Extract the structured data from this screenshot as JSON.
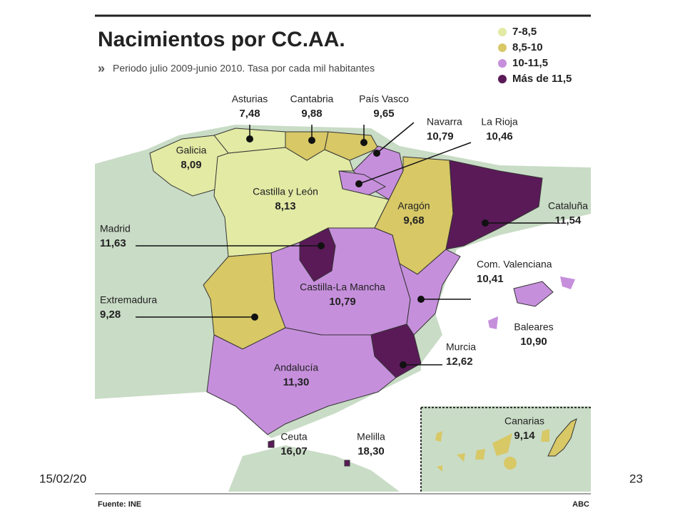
{
  "header": {
    "title": "Nacimientos por CC.AA.",
    "subtitle": "Periodo julio 2009-junio 2010. Tasa por cada mil habitantes"
  },
  "legend": [
    {
      "label": "7-8,5",
      "color": "#e2eaa4"
    },
    {
      "label": "8,5-10",
      "color": "#d8c866"
    },
    {
      "label": "10-11,5",
      "color": "#c68fdc"
    },
    {
      "label": "Más de 11,5",
      "color": "#5a1a58"
    }
  ],
  "regions": [
    {
      "name": "Asturias",
      "value": "7,48",
      "class": 0
    },
    {
      "name": "Cantabria",
      "value": "9,88",
      "class": 1
    },
    {
      "name": "País Vasco",
      "value": "9,65",
      "class": 1
    },
    {
      "name": "Navarra",
      "value": "10,79",
      "class": 2
    },
    {
      "name": "La Rioja",
      "value": "10,46",
      "class": 2
    },
    {
      "name": "Galicia",
      "value": "8,09",
      "class": 0
    },
    {
      "name": "Castilla y León",
      "value": "8,13",
      "class": 0
    },
    {
      "name": "Aragón",
      "value": "9,68",
      "class": 1
    },
    {
      "name": "Cataluña",
      "value": "11,54",
      "class": 3
    },
    {
      "name": "Madrid",
      "value": "11,63",
      "class": 3
    },
    {
      "name": "Extremadura",
      "value": "9,28",
      "class": 1
    },
    {
      "name": "Castilla-La Mancha",
      "value": "10,79",
      "class": 2
    },
    {
      "name": "Com. Valenciana",
      "value": "10,41",
      "class": 2
    },
    {
      "name": "Baleares",
      "value": "10,90",
      "class": 2
    },
    {
      "name": "Murcia",
      "value": "12,62",
      "class": 3
    },
    {
      "name": "Andalucía",
      "value": "11,30",
      "class": 2
    },
    {
      "name": "Ceuta",
      "value": "16,07",
      "class": 3
    },
    {
      "name": "Melilla",
      "value": "18,30",
      "class": 3
    },
    {
      "name": "Canarias",
      "value": "9,14",
      "class": 1
    }
  ],
  "footer": {
    "source": "Fuente: INE",
    "credit": "ABC"
  },
  "slide": {
    "date": "15/02/20",
    "page": "23"
  }
}
